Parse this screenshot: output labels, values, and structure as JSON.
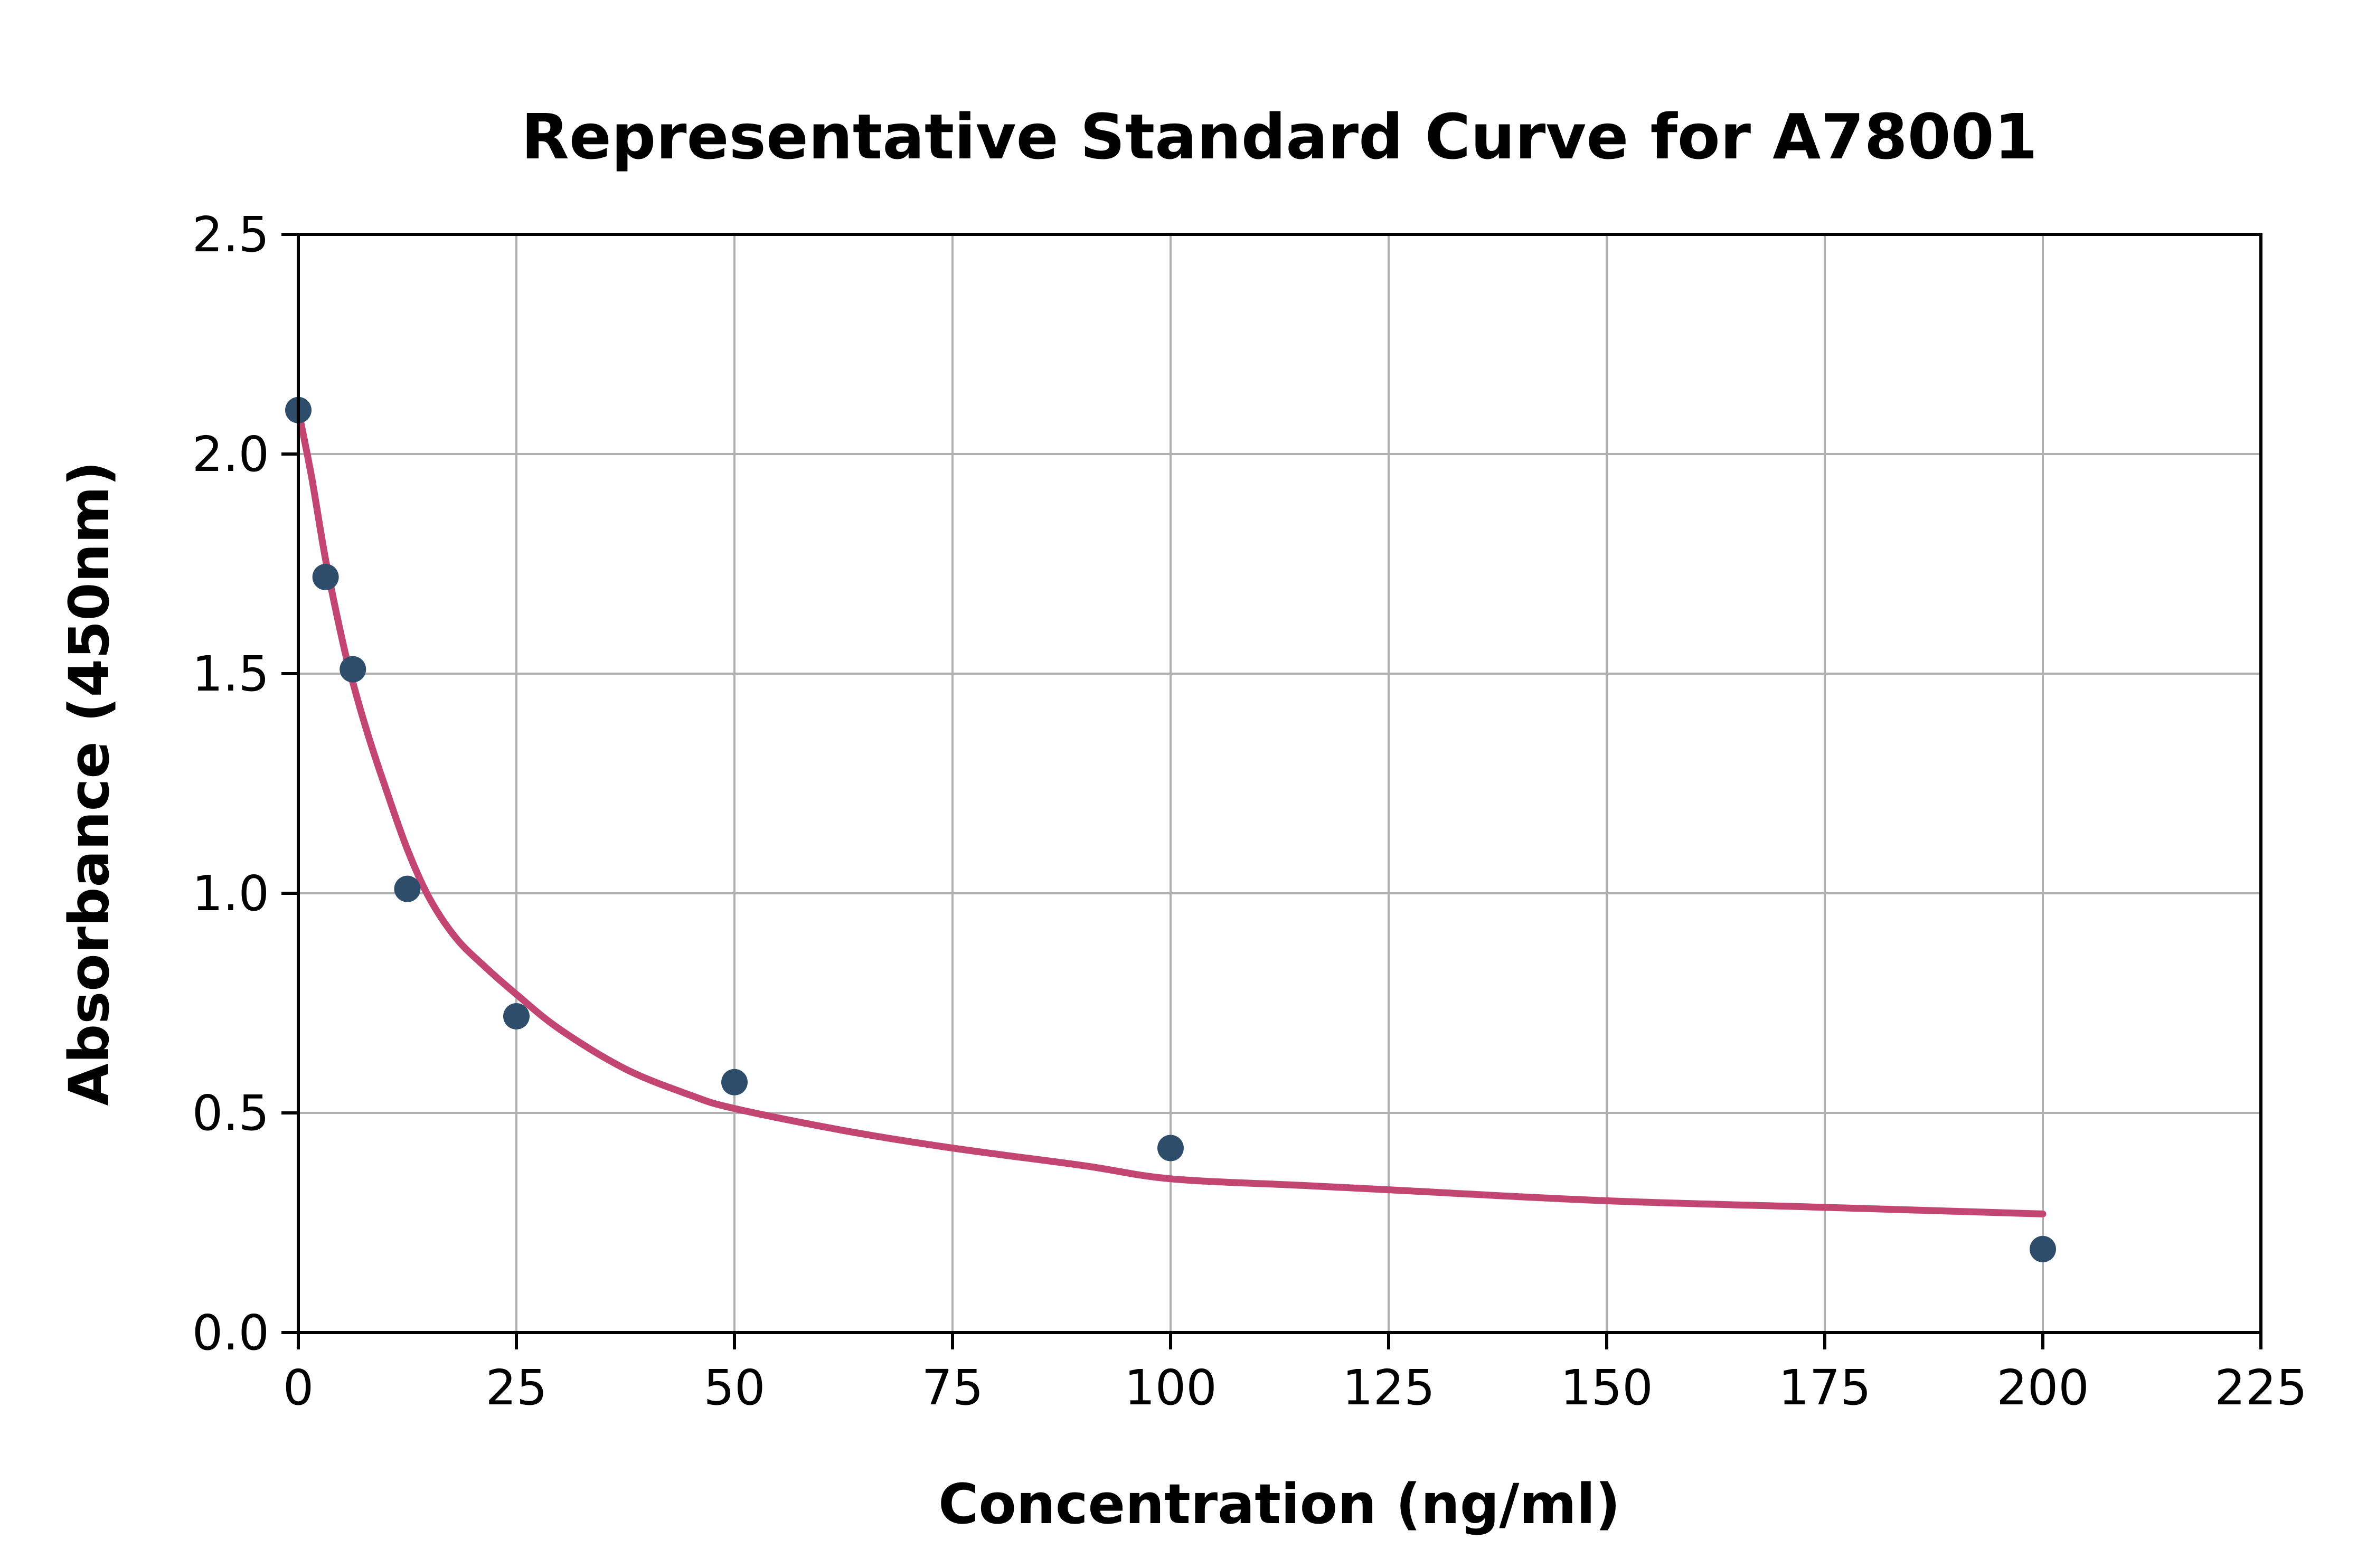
{
  "figure": {
    "background": "#ffffff"
  },
  "chart_data": {
    "type": "scatter",
    "title": "Representative Standard Curve for A78001",
    "xlabel": "Concentration (ng/ml)",
    "ylabel": "Absorbance (450nm)",
    "xlim": [
      0,
      225
    ],
    "ylim": [
      0.0,
      2.5
    ],
    "x_ticks": [
      0,
      25,
      50,
      75,
      100,
      125,
      150,
      175,
      200,
      225
    ],
    "y_ticks": [
      "0.0",
      "0.5",
      "1.0",
      "1.5",
      "2.0",
      "2.5"
    ],
    "grid": true,
    "legend_position": "none",
    "points": [
      {
        "x": 0,
        "y": 2.1
      },
      {
        "x": 3.125,
        "y": 1.72
      },
      {
        "x": 6.25,
        "y": 1.51
      },
      {
        "x": 12.5,
        "y": 1.01
      },
      {
        "x": 25,
        "y": 0.72
      },
      {
        "x": 50,
        "y": 0.57
      },
      {
        "x": 100,
        "y": 0.42
      },
      {
        "x": 200,
        "y": 0.19
      }
    ],
    "fit_curve_samples": [
      {
        "x": 0,
        "y": 2.1
      },
      {
        "x": 1.5,
        "y": 1.95
      },
      {
        "x": 3.125,
        "y": 1.76
      },
      {
        "x": 5,
        "y": 1.58
      },
      {
        "x": 6.25,
        "y": 1.48
      },
      {
        "x": 8,
        "y": 1.36
      },
      {
        "x": 10,
        "y": 1.24
      },
      {
        "x": 12.5,
        "y": 1.1
      },
      {
        "x": 15,
        "y": 0.99
      },
      {
        "x": 18,
        "y": 0.9
      },
      {
        "x": 21,
        "y": 0.84
      },
      {
        "x": 25,
        "y": 0.77
      },
      {
        "x": 30,
        "y": 0.69
      },
      {
        "x": 37.5,
        "y": 0.6
      },
      {
        "x": 45,
        "y": 0.54
      },
      {
        "x": 50,
        "y": 0.51
      },
      {
        "x": 62.5,
        "y": 0.46
      },
      {
        "x": 75,
        "y": 0.42
      },
      {
        "x": 90,
        "y": 0.38
      },
      {
        "x": 100,
        "y": 0.35
      },
      {
        "x": 115,
        "y": 0.335
      },
      {
        "x": 125,
        "y": 0.325
      },
      {
        "x": 150,
        "y": 0.3
      },
      {
        "x": 175,
        "y": 0.285
      },
      {
        "x": 200,
        "y": 0.27
      }
    ],
    "colors": {
      "marker": "#2E4D6B",
      "curve": "#C34672",
      "grid": "#B0B0B0",
      "axis": "#000000",
      "background": "#ffffff"
    }
  }
}
